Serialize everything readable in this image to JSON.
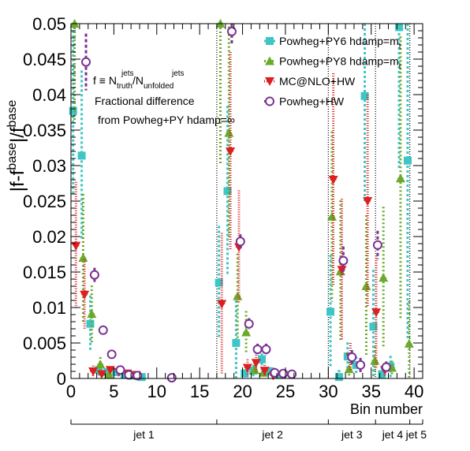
{
  "chart_data": {
    "type": "scatter",
    "xlabel": "Bin number",
    "ylabel": "|f-f",
    "ylabel_sup": "base",
    "ylabel_tail": "|/f",
    "ylabel_tail_sup": "base",
    "xlim": [
      0,
      41
    ],
    "ylim": [
      0,
      0.05
    ],
    "x_ticks": [
      0,
      5,
      10,
      15,
      20,
      25,
      30,
      35,
      40
    ],
    "y_ticks": [
      "0",
      "0.005",
      "0.01",
      "0.015",
      "0.02",
      "0.025",
      "0.03",
      "0.035",
      "0.04",
      "0.045",
      "0.05"
    ],
    "y_tick_values": [
      0,
      0.005,
      0.01,
      0.015,
      0.02,
      0.025,
      0.03,
      0.035,
      0.04,
      0.045,
      0.05
    ],
    "jet_boundaries": [
      17,
      30,
      35.5,
      39.5
    ],
    "jet_groups": [
      {
        "label": "jet 1",
        "start": 0,
        "end": 17
      },
      {
        "label": "jet 2",
        "start": 17,
        "end": 30
      },
      {
        "label": "jet 3",
        "start": 30,
        "end": 35.5
      },
      {
        "label": "jet 4",
        "start": 35.5,
        "end": 39.5
      },
      {
        "label": "jet 5",
        "start": 39.5,
        "end": 41
      }
    ],
    "annotation": {
      "line1_prefix": "f ≡ N",
      "line1_sup1": "jets",
      "line1_sub1": "truth",
      "line1_mid": "/N",
      "line1_sup2": "jets",
      "line1_sub2": "unfolded",
      "line2": "Fractional difference",
      "line3": "from Powheg+PY hdamp=∞"
    },
    "series": [
      {
        "name": "Powheg+PY6 hdamp=m",
        "name_sub": "t",
        "color": "#3ec5c5",
        "marker": "square",
        "dash": "3,3",
        "offset": -0.25,
        "points": [
          {
            "x": 0.5,
            "y": 0.0377,
            "err": 0.012
          },
          {
            "x": 1.5,
            "y": 0.0314,
            "err": 0.012
          },
          {
            "x": 2.5,
            "y": 0.0077,
            "err": 0.004
          },
          {
            "x": 3.5,
            "y": 0.0012,
            "err": 0.0008
          },
          {
            "x": 4.5,
            "y": 0.0009,
            "err": 0.0004
          },
          {
            "x": 5.5,
            "y": 0.0009,
            "err": 0.0004
          },
          {
            "x": 6.5,
            "y": 0.0006,
            "err": 0.0003
          },
          {
            "x": 7.5,
            "y": 0.0004,
            "err": 0.0002
          },
          {
            "x": 8.5,
            "y": 0.0002,
            "err": 0.0001
          },
          {
            "x": 17.5,
            "y": 0.0135,
            "err": 0.008
          },
          {
            "x": 18.5,
            "y": 0.0264,
            "err": 0.012
          },
          {
            "x": 19.5,
            "y": 0.005,
            "err": 0.006
          },
          {
            "x": 20.5,
            "y": 0.0007,
            "err": 0.0006
          },
          {
            "x": 21.5,
            "y": 0.0011,
            "err": 0.0008
          },
          {
            "x": 22.5,
            "y": 0.0027,
            "err": 0.0015
          },
          {
            "x": 23.5,
            "y": 0.001,
            "err": 0.0006
          },
          {
            "x": 24.5,
            "y": 0.0005,
            "err": 0.0004
          },
          {
            "x": 30.5,
            "y": 0.0094,
            "err": 0.008
          },
          {
            "x": 31.5,
            "y": 0.0002,
            "err": 0.001
          },
          {
            "x": 32.5,
            "y": 0.0031,
            "err": 0.002
          },
          {
            "x": 33.5,
            "y": 0.0019,
            "err": 0.0012
          },
          {
            "x": 34.5,
            "y": 0.0398,
            "err": 0.015
          },
          {
            "x": 35.5,
            "y": 0.0073,
            "err": 0.008
          },
          {
            "x": 36.5,
            "y": 0.0006,
            "err": 0.001
          },
          {
            "x": 37.5,
            "y": 0.0017,
            "err": 0.0015
          },
          {
            "x": 38.5,
            "y": 0.0495,
            "err": 0.02
          },
          {
            "x": 39.5,
            "y": 0.0307,
            "err": 0.025
          }
        ]
      },
      {
        "name": "Powheg+PY8 hdamp=m",
        "name_sub": "t",
        "color": "#6aaa2a",
        "marker": "triangle-up",
        "dash": "2,3",
        "offset": -0.08,
        "points": [
          {
            "x": 0.5,
            "y": 0.05,
            "err": 0.014
          },
          {
            "x": 1.5,
            "y": 0.017,
            "err": 0.009
          },
          {
            "x": 2.5,
            "y": 0.0091,
            "err": 0.004
          },
          {
            "x": 3.5,
            "y": 0.002,
            "err": 0.001
          },
          {
            "x": 4.5,
            "y": 0.0006,
            "err": 0.0004
          },
          {
            "x": 17.5,
            "y": 0.05,
            "err": 0.02
          },
          {
            "x": 18.5,
            "y": 0.0346,
            "err": 0.015
          },
          {
            "x": 19.5,
            "y": 0.0116,
            "err": 0.006
          },
          {
            "x": 20.5,
            "y": 0.0065,
            "err": 0.003
          },
          {
            "x": 21.5,
            "y": 0.0012,
            "err": 0.0008
          },
          {
            "x": 22.5,
            "y": 0.0008,
            "err": 0.0005
          },
          {
            "x": 30.5,
            "y": 0.0228,
            "err": 0.012
          },
          {
            "x": 31.5,
            "y": 0.0151,
            "err": 0.01
          },
          {
            "x": 32.5,
            "y": 0.0013,
            "err": 0.001
          },
          {
            "x": 34.5,
            "y": 0.013,
            "err": 0.01
          },
          {
            "x": 35.5,
            "y": 0.0025,
            "err": 0.002
          },
          {
            "x": 36.5,
            "y": 0.0142,
            "err": 0.01
          },
          {
            "x": 37.5,
            "y": 0.0015,
            "err": 0.001
          },
          {
            "x": 38.5,
            "y": 0.0282,
            "err": 0.02
          },
          {
            "x": 39.5,
            "y": 0.0049,
            "err": 0.006
          }
        ]
      },
      {
        "name": "MC@NLO+HW",
        "name_sub": "",
        "color": "#dd1f1f",
        "marker": "triangle-down",
        "dash": "1,2",
        "offset": 0.08,
        "points": [
          {
            "x": 0.5,
            "y": 0.0187,
            "err": 0.009
          },
          {
            "x": 1.5,
            "y": 0.0118,
            "err": 0.005
          },
          {
            "x": 2.5,
            "y": 0.001,
            "err": 0.0008
          },
          {
            "x": 3.5,
            "y": 0.0006,
            "err": 0.0004
          },
          {
            "x": 4.5,
            "y": 0.0012,
            "err": 0.0005
          },
          {
            "x": 5.5,
            "y": 0.0009,
            "err": 0.0004
          },
          {
            "x": 6.5,
            "y": 0.0007,
            "err": 0.0003
          },
          {
            "x": 7.5,
            "y": 0.0005,
            "err": 0.0003
          },
          {
            "x": 17.5,
            "y": 0.0105,
            "err": 0.01
          },
          {
            "x": 18.5,
            "y": 0.032,
            "err": 0.014
          },
          {
            "x": 19.5,
            "y": 0.0185,
            "err": 0.008
          },
          {
            "x": 20.5,
            "y": 0.0015,
            "err": 0.0012
          },
          {
            "x": 21.5,
            "y": 0.0022,
            "err": 0.0015
          },
          {
            "x": 22.5,
            "y": 0.0011,
            "err": 0.0008
          },
          {
            "x": 23.5,
            "y": 0.0004,
            "err": 0.0004
          },
          {
            "x": 30.5,
            "y": 0.028,
            "err": 0.015
          },
          {
            "x": 31.5,
            "y": 0.0153,
            "err": 0.01
          },
          {
            "x": 32.5,
            "y": 0.003,
            "err": 0.002
          },
          {
            "x": 34.5,
            "y": 0.025,
            "err": 0.015
          },
          {
            "x": 35.5,
            "y": 0.0093,
            "err": 0.008
          },
          {
            "x": 36.5,
            "y": 0.0012,
            "err": 0.001
          }
        ]
      },
      {
        "name": "Powheg+HW",
        "name_sub": "",
        "color": "#7b3294",
        "marker": "circle-open",
        "dash": "4,3",
        "offset": 0.25,
        "points": [
          {
            "x": 1.5,
            "y": 0.0446,
            "err": 0.004
          },
          {
            "x": 2.5,
            "y": 0.0146,
            "err": 0.001
          },
          {
            "x": 3.5,
            "y": 0.0068,
            "err": 0.0006
          },
          {
            "x": 4.5,
            "y": 0.0034,
            "err": 0.0003
          },
          {
            "x": 5.5,
            "y": 0.0012,
            "err": 0.0002
          },
          {
            "x": 6.5,
            "y": 0.0005,
            "err": 0.0002
          },
          {
            "x": 7.5,
            "y": 0.0004,
            "err": 0.0002
          },
          {
            "x": 11.5,
            "y": 0.0001,
            "err": 0.0001
          },
          {
            "x": 18.5,
            "y": 0.0489,
            "err": 0.002
          },
          {
            "x": 19.5,
            "y": 0.0193,
            "err": 0.001
          },
          {
            "x": 20.5,
            "y": 0.0077,
            "err": 0.0008
          },
          {
            "x": 21.5,
            "y": 0.0041,
            "err": 0.0008
          },
          {
            "x": 22.5,
            "y": 0.0041,
            "err": 0.0008
          },
          {
            "x": 23.5,
            "y": 0.0008,
            "err": 0.0004
          },
          {
            "x": 24.5,
            "y": 0.0007,
            "err": 0.0004
          },
          {
            "x": 25.5,
            "y": 0.0006,
            "err": 0.0004
          },
          {
            "x": 31.5,
            "y": 0.0166,
            "err": 0.002
          },
          {
            "x": 32.5,
            "y": 0.003,
            "err": 0.001
          },
          {
            "x": 33.5,
            "y": 0.0019,
            "err": 0.001
          },
          {
            "x": 35.5,
            "y": 0.0188,
            "err": 0.002
          },
          {
            "x": 36.5,
            "y": 0.0016,
            "err": 0.0008
          }
        ]
      }
    ]
  }
}
